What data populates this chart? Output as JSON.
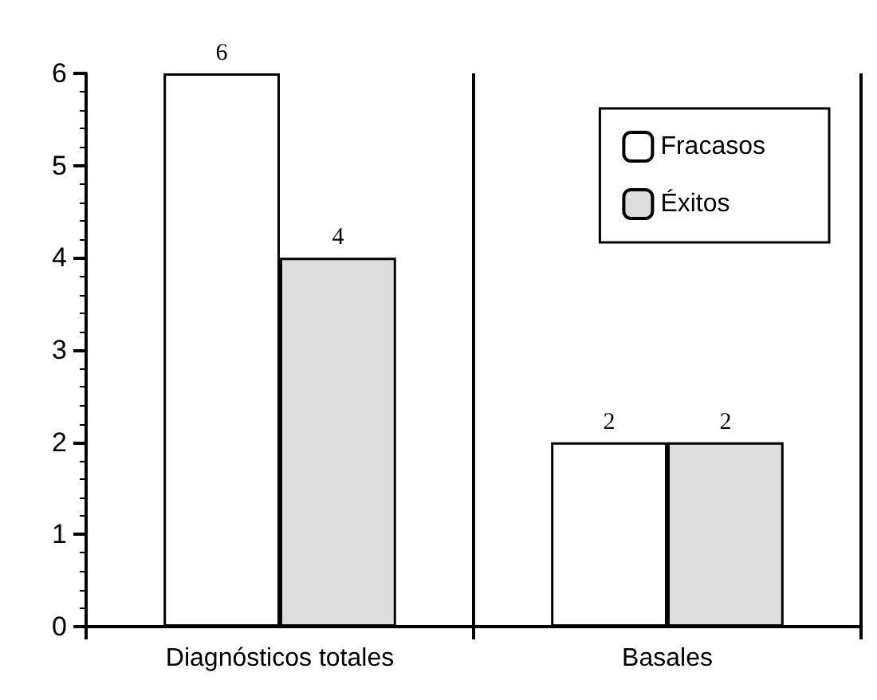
{
  "chart_data": {
    "type": "bar",
    "categories": [
      "Diagnósticos totales",
      "Basales"
    ],
    "series": [
      {
        "name": "Fracasos",
        "color": "#ffffff",
        "values": [
          6,
          2
        ]
      },
      {
        "name": "Éxitos",
        "color": "#dddddd",
        "values": [
          4,
          2
        ]
      }
    ],
    "ylim": [
      0,
      6
    ],
    "yticks": [
      0,
      1,
      2,
      3,
      4,
      5,
      6
    ],
    "grid": "x",
    "legend": "top right",
    "data_labels": true
  }
}
